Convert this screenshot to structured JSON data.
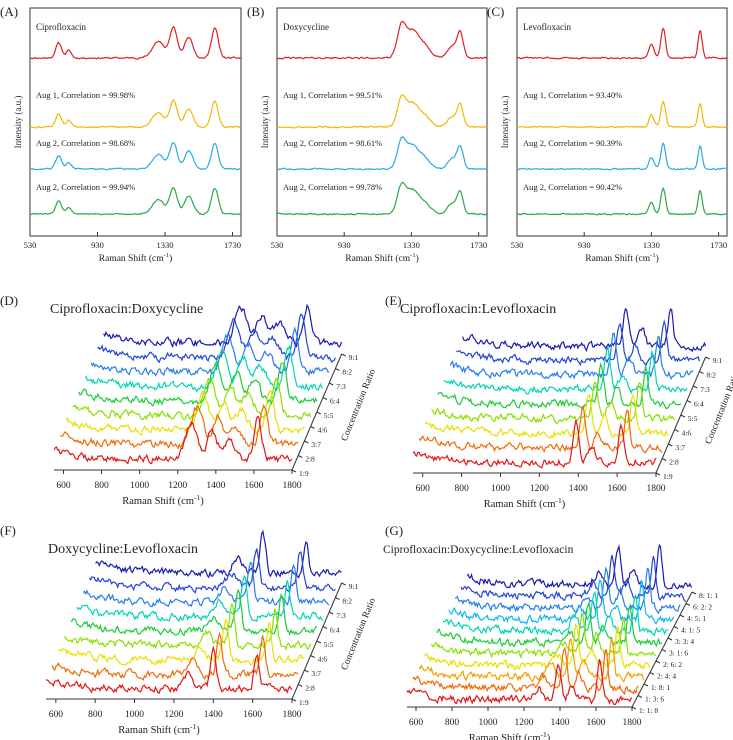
{
  "chart_data": [
    {
      "type": "line",
      "panel": "(A)",
      "compound": "Ciprofloxacin",
      "xlabel": "Raman Shift (cm",
      "xlabel_sup": "-1",
      "xlabel_end": ")",
      "ylabel": "Intensity (a.u.)",
      "xlim": [
        530,
        1780
      ],
      "xticks": [
        530,
        930,
        1330,
        1730
      ],
      "colors": [
        "#e02020",
        "#f2b705",
        "#29abe2",
        "#2aa84a"
      ],
      "peaks": [
        [
          700,
          0.5,
          18
        ],
        [
          760,
          0.25,
          15
        ],
        [
          1290,
          0.55,
          35
        ],
        [
          1380,
          1.0,
          22
        ],
        [
          1470,
          0.7,
          25
        ],
        [
          1625,
          1.0,
          20
        ]
      ],
      "spectra": [
        {
          "label": ""
        },
        {
          "label": "Aug 1, Correlation = 99.98%"
        },
        {
          "label": "Aug 2, Correlation = 98.68%"
        },
        {
          "label": "Aug 2, Correlation = 99.94%"
        }
      ]
    },
    {
      "type": "line",
      "panel": "(B)",
      "compound": "Doxycycline",
      "xlabel": "Raman Shift (cm",
      "xlabel_sup": "-1",
      "xlabel_end": ")",
      "ylabel": "Intensity (a.u.)",
      "xlim": [
        530,
        1780
      ],
      "xticks": [
        530,
        930,
        1330,
        1730
      ],
      "colors": [
        "#e02020",
        "#f2b705",
        "#29abe2",
        "#2aa84a"
      ],
      "peaks": [
        [
          1270,
          1.0,
          25
        ],
        [
          1330,
          0.8,
          35
        ],
        [
          1400,
          0.45,
          40
        ],
        [
          1570,
          0.4,
          25
        ],
        [
          1620,
          0.85,
          18
        ]
      ],
      "spectra": [
        {
          "label": ""
        },
        {
          "label": "Aug 1, Correlation = 99.51%"
        },
        {
          "label": "Aug 2, Correlation = 98.61%"
        },
        {
          "label": "Aug 2, Correlation = 99.78%"
        }
      ]
    },
    {
      "type": "line",
      "panel": "(C)",
      "compound": "Levofloxacin",
      "xlabel": "Raman Shift (cm",
      "xlabel_sup": "-1",
      "xlabel_end": ")",
      "ylabel": "Intensity (a.u.)",
      "xlim": [
        530,
        1780
      ],
      "xticks": [
        530,
        930,
        1330,
        1730
      ],
      "colors": [
        "#e02020",
        "#f2b705",
        "#29abe2",
        "#2aa84a"
      ],
      "peaks": [
        [
          1330,
          0.45,
          15
        ],
        [
          1400,
          1.0,
          14
        ],
        [
          1620,
          0.9,
          12
        ]
      ],
      "spectra": [
        {
          "label": ""
        },
        {
          "label": "Aug 1, Correlation = 93.40%"
        },
        {
          "label": "Aug 2, Correlation = 90.39%"
        },
        {
          "label": "Aug 2, Correlation = 90.42%"
        }
      ]
    },
    {
      "type": "line",
      "panel": "(D)",
      "title": "Ciprofloxacin:Doxycycline",
      "xlabel": "Raman Shift (cm",
      "xlabel_sup": "-1",
      "xlabel_end": ")",
      "zlabel": "Concentration Ratio",
      "xlim": [
        550,
        1800
      ],
      "xticks": [
        600,
        800,
        1000,
        1200,
        1400,
        1600,
        1800
      ],
      "series": [
        "1:9",
        "2:8",
        "3:7",
        "4:6",
        "5:5",
        "6:4",
        "7:3",
        "8:2",
        "9:1"
      ],
      "peaks": [
        [
          1270,
          0.9,
          30
        ],
        [
          1380,
          0.7,
          25
        ],
        [
          1470,
          0.5,
          30
        ],
        [
          1620,
          1.0,
          20
        ]
      ]
    },
    {
      "type": "line",
      "panel": "(E)",
      "title": "Ciprofloxacin:Levofloxacin",
      "xlabel": "Raman Shift (cm",
      "xlabel_sup": "-1",
      "xlabel_end": ")",
      "zlabel": "Concentration Ratio",
      "xlim": [
        550,
        1800
      ],
      "xticks": [
        600,
        800,
        1000,
        1200,
        1400,
        1600,
        1800
      ],
      "series": [
        "1:9",
        "2:8",
        "3:7",
        "4:6",
        "5:5",
        "6:4",
        "7:3",
        "8:2",
        "9:1"
      ],
      "peaks": [
        [
          1390,
          1.0,
          14
        ],
        [
          1470,
          0.4,
          18
        ],
        [
          1620,
          0.95,
          12
        ]
      ]
    },
    {
      "type": "line",
      "panel": "(F)",
      "title": "Doxycycline:Levofloxacin",
      "xlabel": "Raman Shift (cm",
      "xlabel_sup": "-1",
      "xlabel_end": ")",
      "zlabel": "Concentration Ratio",
      "xlim": [
        550,
        1800
      ],
      "xticks": [
        600,
        800,
        1000,
        1200,
        1400,
        1600,
        1800
      ],
      "series": [
        "1:9",
        "2:8",
        "3:7",
        "4:6",
        "5:5",
        "6:4",
        "7:3",
        "8:2",
        "9:1"
      ],
      "peaks": [
        [
          1400,
          1.0,
          14
        ],
        [
          1620,
          0.9,
          12
        ],
        [
          1270,
          0.35,
          25
        ]
      ]
    },
    {
      "type": "line",
      "panel": "(G)",
      "title": "Ciprofloxacin:Doxycycline:Levofloxacin",
      "xlabel": "Raman Shift (cm",
      "xlabel_sup": "-1",
      "xlabel_end": ")",
      "xlim": [
        550,
        1800
      ],
      "xticks": [
        600,
        800,
        1000,
        1200,
        1400,
        1600,
        1800
      ],
      "series": [
        "1: 1: 8",
        "1: 3: 6",
        "1: 8: 1",
        "2: 4: 4",
        "2: 6: 2",
        "3: 1: 6",
        "3: 3: 4",
        "4: 1: 5",
        "4: 5: 1",
        "6: 2: 2",
        "8: 1: 1"
      ],
      "peaks": [
        [
          1390,
          1.0,
          14
        ],
        [
          1470,
          0.4,
          18
        ],
        [
          1620,
          0.95,
          12
        ],
        [
          1280,
          0.3,
          25
        ]
      ]
    }
  ]
}
